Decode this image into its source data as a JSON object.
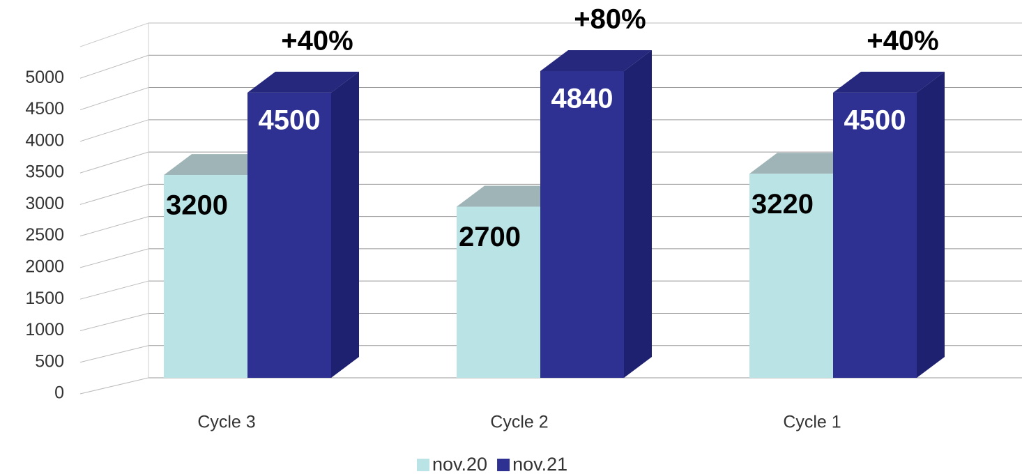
{
  "chart_data": {
    "type": "bar3d",
    "categories": [
      "Cycle 3",
      "Cycle 2",
      "Cycle 1"
    ],
    "series": [
      {
        "name": "nov.20",
        "color": "#b9e3e5",
        "values": [
          3200,
          2700,
          3220
        ]
      },
      {
        "name": "nov.21",
        "color": "#2e3192",
        "values": [
          4500,
          4840,
          4500
        ]
      }
    ],
    "annotations": [
      "+40%",
      "+80%",
      "+40%"
    ],
    "ylim": [
      0,
      5500
    ],
    "yticks": [
      0,
      500,
      1000,
      1500,
      2000,
      2500,
      3000,
      3500,
      4000,
      4500,
      5000
    ],
    "grid": true,
    "legend": "bottom"
  }
}
